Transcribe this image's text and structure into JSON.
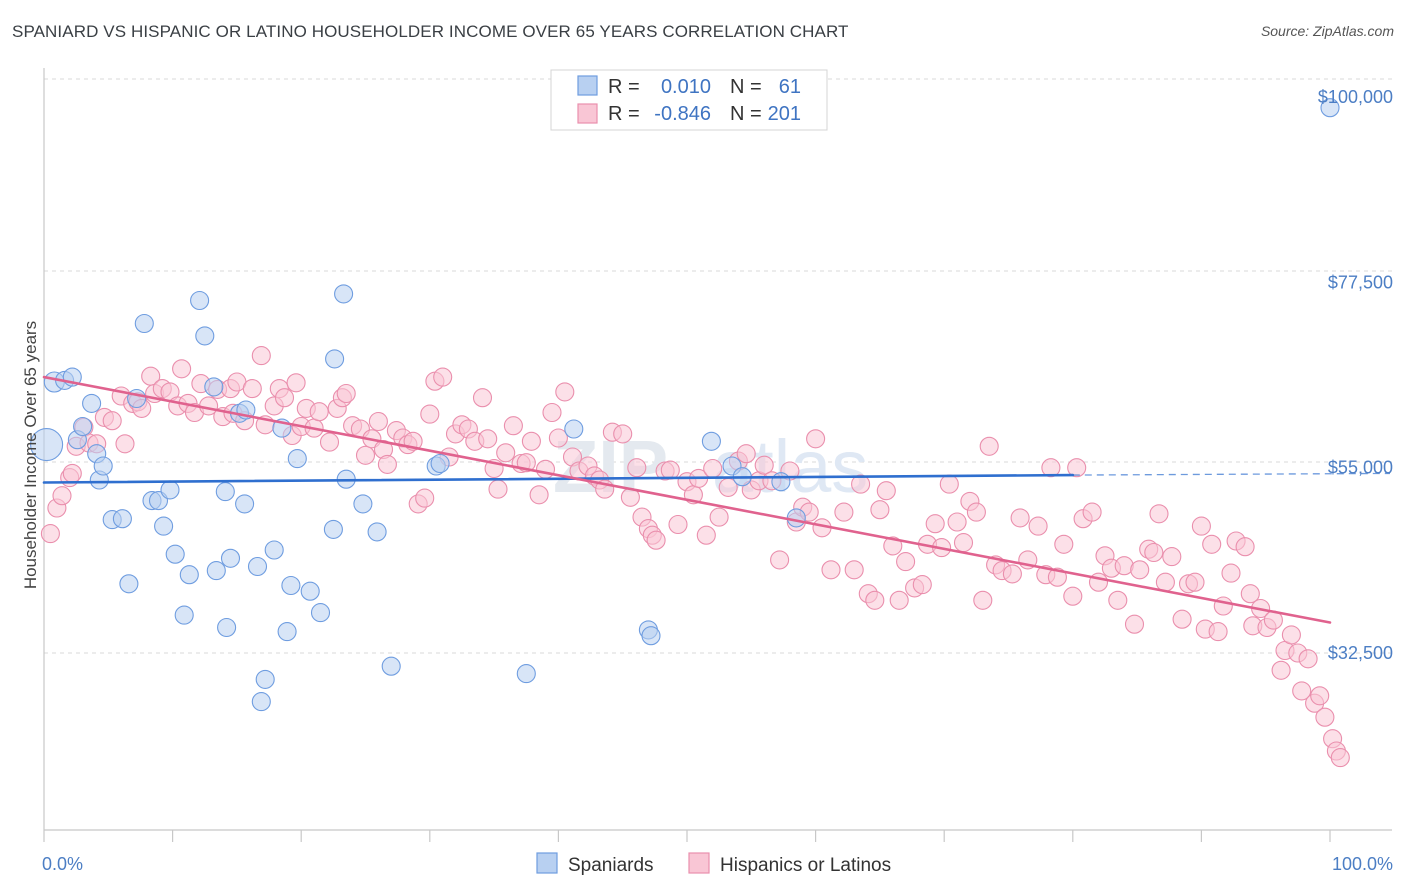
{
  "title": "SPANIARD VS HISPANIC OR LATINO HOUSEHOLDER INCOME OVER 65 YEARS CORRELATION CHART",
  "source": "Source: ZipAtlas.com",
  "colors": {
    "blue_fill": "#b8d0f1",
    "blue_stroke": "#6f9de0",
    "blue_line": "#2f6fcf",
    "pink_fill": "#f9c6d5",
    "pink_stroke": "#ea8fad",
    "pink_line": "#e0628e",
    "axis_text": "#4c7ec4",
    "grid": "#d9d9d9"
  },
  "legend": {
    "rows": [
      {
        "r_label": "R =",
        "r_value": "0.010",
        "n_label": "N =",
        "n_value": "61",
        "series": "blue"
      },
      {
        "r_label": "R =",
        "r_value": "-0.846",
        "n_label": "N =",
        "n_value": "201",
        "series": "pink"
      }
    ]
  },
  "chart_data": {
    "type": "scatter",
    "ylabel": "Householder Income Over 65 years",
    "xlim": [
      0,
      100
    ],
    "ylim": [
      20000,
      102000
    ],
    "x_tick_labels": [
      "0.0%",
      "100.0%"
    ],
    "y_ticks": [
      {
        "value": 100000,
        "label": "$100,000"
      },
      {
        "value": 77500,
        "label": "$77,500"
      },
      {
        "value": 55000,
        "label": "$55,000"
      },
      {
        "value": 32500,
        "label": "$32,500"
      }
    ],
    "watermark": "ZIPatlas",
    "series": [
      {
        "name": "Spaniards",
        "color": "blue",
        "trend": {
          "x0": 0,
          "y0": 53200,
          "x1": 80,
          "y1": 54100,
          "dash_to_x": 100,
          "dash_to_y": 54300
        },
        "points": [
          [
            0.2,
            57800,
            16
          ],
          [
            0.8,
            65400,
            10
          ],
          [
            1.6,
            65600,
            9
          ],
          [
            2.2,
            66000,
            9
          ],
          [
            2.6,
            58400,
            9
          ],
          [
            3,
            60000,
            9
          ],
          [
            3.7,
            62800,
            9
          ],
          [
            4.1,
            56700,
            9
          ],
          [
            4.3,
            53500,
            9
          ],
          [
            4.6,
            55200,
            9
          ],
          [
            5.3,
            48700,
            9
          ],
          [
            6.1,
            48800,
            9
          ],
          [
            6.6,
            40900,
            9
          ],
          [
            7.2,
            63400,
            9
          ],
          [
            7.8,
            72500,
            9
          ],
          [
            8.4,
            51000,
            9
          ],
          [
            8.9,
            51000,
            9
          ],
          [
            9.3,
            47900,
            9
          ],
          [
            9.8,
            52300,
            9
          ],
          [
            10.2,
            44500,
            9
          ],
          [
            10.9,
            37100,
            9
          ],
          [
            11.3,
            42000,
            9
          ],
          [
            12.1,
            75300,
            9
          ],
          [
            12.5,
            71000,
            9
          ],
          [
            13.2,
            64800,
            9
          ],
          [
            13.4,
            42500,
            9
          ],
          [
            14.1,
            52100,
            9
          ],
          [
            14.2,
            35600,
            9
          ],
          [
            14.5,
            44000,
            9
          ],
          [
            15.2,
            61600,
            9
          ],
          [
            15.6,
            50600,
            9
          ],
          [
            15.7,
            62000,
            9
          ],
          [
            16.6,
            43000,
            9
          ],
          [
            16.9,
            26600,
            9
          ],
          [
            17.2,
            29300,
            9
          ],
          [
            17.9,
            45000,
            9
          ],
          [
            18.5,
            59800,
            9
          ],
          [
            18.9,
            35100,
            9
          ],
          [
            19.2,
            40700,
            9
          ],
          [
            19.7,
            56100,
            9
          ],
          [
            20.7,
            40000,
            9
          ],
          [
            21.5,
            37400,
            9
          ],
          [
            22.5,
            47500,
            9
          ],
          [
            22.6,
            68200,
            9
          ],
          [
            23.3,
            76100,
            9
          ],
          [
            23.5,
            53600,
            9
          ],
          [
            24.8,
            50600,
            9
          ],
          [
            25.9,
            47200,
            9
          ],
          [
            27,
            30900,
            9
          ],
          [
            30.5,
            55200,
            9
          ],
          [
            30.8,
            55500,
            9
          ],
          [
            37.5,
            30000,
            9
          ],
          [
            41.2,
            59700,
            9
          ],
          [
            47,
            35300,
            9
          ],
          [
            47.2,
            34600,
            9
          ],
          [
            51.9,
            58200,
            9
          ],
          [
            53.5,
            55200,
            9
          ],
          [
            54.3,
            53900,
            9
          ],
          [
            57.3,
            53300,
            9
          ],
          [
            58.5,
            48900,
            9
          ],
          [
            100,
            98700,
            9
          ]
        ]
      },
      {
        "name": "Hispanics or Latinos",
        "color": "pink",
        "trend": {
          "x0": 0,
          "y0": 66000,
          "x1": 100,
          "y1": 36200
        },
        "points": [
          [
            0.5,
            47000
          ],
          [
            1,
            50100
          ],
          [
            1.4,
            51600
          ],
          [
            2,
            53800
          ],
          [
            2.2,
            54300
          ],
          [
            2.5,
            57600
          ],
          [
            3.1,
            59900
          ],
          [
            3.5,
            58000
          ],
          [
            4.1,
            57900
          ],
          [
            4.7,
            61100
          ],
          [
            5.3,
            60700
          ],
          [
            6,
            63700
          ],
          [
            6.3,
            57900
          ],
          [
            6.9,
            62800
          ],
          [
            7.3,
            63000
          ],
          [
            7.6,
            62200
          ],
          [
            8.3,
            66100
          ],
          [
            8.6,
            64000
          ],
          [
            9.2,
            64600
          ],
          [
            9.8,
            64200
          ],
          [
            10.4,
            62500
          ],
          [
            10.7,
            67000
          ],
          [
            11.2,
            62800
          ],
          [
            11.7,
            61700
          ],
          [
            12.2,
            65200
          ],
          [
            12.8,
            62500
          ],
          [
            13.5,
            64500
          ],
          [
            13.9,
            61200
          ],
          [
            14.5,
            64600
          ],
          [
            14.7,
            61600
          ],
          [
            15,
            65400
          ],
          [
            15.6,
            60700
          ],
          [
            16.2,
            64600
          ],
          [
            16.9,
            68600
          ],
          [
            17.2,
            60200
          ],
          [
            17.9,
            62500
          ],
          [
            18.3,
            64600
          ],
          [
            18.7,
            63500
          ],
          [
            19.3,
            58900
          ],
          [
            19.6,
            65300
          ],
          [
            20,
            60000
          ],
          [
            20.4,
            62200
          ],
          [
            21,
            59800
          ],
          [
            21.4,
            61800
          ],
          [
            22.2,
            58100
          ],
          [
            22.8,
            62200
          ],
          [
            23.2,
            63500
          ],
          [
            23.5,
            64000
          ],
          [
            24,
            60100
          ],
          [
            24.6,
            59700
          ],
          [
            25,
            56500
          ],
          [
            25.5,
            58500
          ],
          [
            26,
            60600
          ],
          [
            26.4,
            57200
          ],
          [
            26.7,
            55400
          ],
          [
            27.4,
            59500
          ],
          [
            27.9,
            58600
          ],
          [
            28.3,
            57800
          ],
          [
            28.7,
            58200
          ],
          [
            29.1,
            50600
          ],
          [
            29.6,
            51300
          ],
          [
            30,
            61500
          ],
          [
            30.4,
            65500
          ],
          [
            31,
            66000
          ],
          [
            31.5,
            56300
          ],
          [
            32,
            59100
          ],
          [
            32.5,
            60200
          ],
          [
            33,
            59700
          ],
          [
            33.5,
            58200
          ],
          [
            34.1,
            63500
          ],
          [
            34.5,
            58500
          ],
          [
            35,
            54900
          ],
          [
            35.3,
            52400
          ],
          [
            35.9,
            56800
          ],
          [
            36.5,
            60100
          ],
          [
            37.1,
            55500
          ],
          [
            37.5,
            55600
          ],
          [
            37.9,
            58200
          ],
          [
            38.5,
            51700
          ],
          [
            39,
            54800
          ],
          [
            39.5,
            61700
          ],
          [
            40,
            58600
          ],
          [
            40.5,
            64200
          ],
          [
            41.1,
            56300
          ],
          [
            41.6,
            54600
          ],
          [
            42.3,
            55200
          ],
          [
            42.8,
            54000
          ],
          [
            43.2,
            53500
          ],
          [
            43.6,
            52400
          ],
          [
            44.2,
            59300
          ],
          [
            45,
            59100
          ],
          [
            45.6,
            51400
          ],
          [
            46.1,
            55000
          ],
          [
            46.5,
            49000
          ],
          [
            47,
            47600
          ],
          [
            47.3,
            46800
          ],
          [
            47.6,
            46200
          ],
          [
            48.3,
            54600
          ],
          [
            48.7,
            54700
          ],
          [
            49.3,
            48100
          ],
          [
            50,
            53300
          ],
          [
            50.5,
            51700
          ],
          [
            50.9,
            53700
          ],
          [
            51.5,
            46800
          ],
          [
            52,
            54900
          ],
          [
            52.5,
            49000
          ],
          [
            53.2,
            52600
          ],
          [
            54,
            55800
          ],
          [
            54.6,
            56700
          ],
          [
            55,
            52300
          ],
          [
            55.6,
            53400
          ],
          [
            56,
            55300
          ],
          [
            56.6,
            53400
          ],
          [
            57.2,
            43800
          ],
          [
            58,
            54600
          ],
          [
            58.5,
            48400
          ],
          [
            59,
            50200
          ],
          [
            59.5,
            49600
          ],
          [
            60,
            58500
          ],
          [
            60.5,
            47700
          ],
          [
            61.2,
            42600
          ],
          [
            62.2,
            49600
          ],
          [
            63,
            42600
          ],
          [
            63.5,
            53000
          ],
          [
            64.1,
            39700
          ],
          [
            64.6,
            38900
          ],
          [
            65,
            49900
          ],
          [
            65.5,
            52200
          ],
          [
            66,
            45500
          ],
          [
            66.5,
            38900
          ],
          [
            67,
            43600
          ],
          [
            67.7,
            40400
          ],
          [
            68.3,
            40800
          ],
          [
            68.7,
            45700
          ],
          [
            69.3,
            48200
          ],
          [
            69.8,
            45300
          ],
          [
            70.4,
            53000
          ],
          [
            71,
            48400
          ],
          [
            71.5,
            45900
          ],
          [
            72,
            50900
          ],
          [
            72.5,
            49600
          ],
          [
            73,
            38900
          ],
          [
            73.5,
            57600
          ],
          [
            74,
            43200
          ],
          [
            74.5,
            42500
          ],
          [
            75.3,
            42100
          ],
          [
            75.9,
            48900
          ],
          [
            76.5,
            43800
          ],
          [
            77.3,
            47900
          ],
          [
            77.9,
            42000
          ],
          [
            78.3,
            55000
          ],
          [
            78.8,
            41700
          ],
          [
            79.3,
            45700
          ],
          [
            80,
            39400
          ],
          [
            80.3,
            55000
          ],
          [
            80.8,
            48800
          ],
          [
            81.5,
            49600
          ],
          [
            82,
            41100
          ],
          [
            82.5,
            44300
          ],
          [
            83,
            42800
          ],
          [
            83.5,
            38900
          ],
          [
            84,
            43100
          ],
          [
            84.8,
            36000
          ],
          [
            85.2,
            42600
          ],
          [
            85.9,
            45100
          ],
          [
            86.3,
            44700
          ],
          [
            86.7,
            49400
          ],
          [
            87.2,
            41100
          ],
          [
            87.7,
            44200
          ],
          [
            88.5,
            36600
          ],
          [
            89,
            40900
          ],
          [
            89.5,
            41100
          ],
          [
            90,
            47900
          ],
          [
            90.3,
            35400
          ],
          [
            90.8,
            45700
          ],
          [
            91.3,
            35100
          ],
          [
            91.7,
            38200
          ],
          [
            92.3,
            42200
          ],
          [
            92.7,
            46100
          ],
          [
            93.4,
            45400
          ],
          [
            93.8,
            39700
          ],
          [
            94,
            35800
          ],
          [
            94.6,
            37900
          ],
          [
            95.1,
            35600
          ],
          [
            95.6,
            36500
          ],
          [
            96.2,
            30400
          ],
          [
            96.5,
            32800
          ],
          [
            97,
            34700
          ],
          [
            97.5,
            32500
          ],
          [
            97.8,
            27900
          ],
          [
            98.3,
            31800
          ],
          [
            98.8,
            26400
          ],
          [
            99.2,
            27300
          ],
          [
            99.6,
            24700
          ],
          [
            100.2,
            22100
          ],
          [
            100.5,
            20600
          ],
          [
            100.8,
            19800
          ]
        ]
      }
    ]
  },
  "bottom_legend": [
    {
      "label": "Spaniards",
      "color": "blue"
    },
    {
      "label": "Hispanics or Latinos",
      "color": "pink"
    }
  ]
}
